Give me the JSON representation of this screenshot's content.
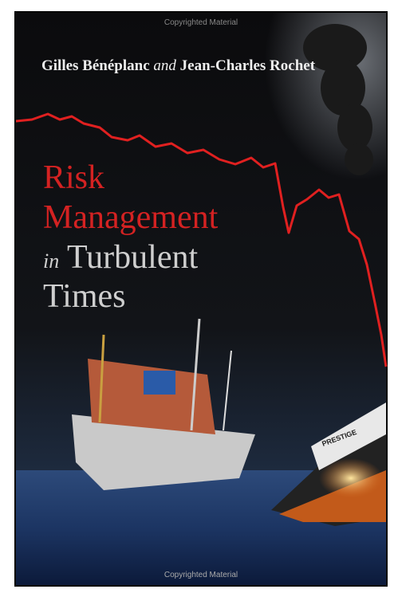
{
  "header": {
    "watermark": "Copyrighted Material"
  },
  "authors": {
    "first": "Gilles Bénéplanc",
    "conjunction": "and",
    "second": "Jean-Charles Rochet"
  },
  "title": {
    "line1": "Risk",
    "line2": "Management",
    "line3_prefix": "in",
    "line3": "Turbulent",
    "line4": "Times"
  },
  "ship_name": "PRESTIGE",
  "footer": {
    "watermark": "Copyrighted Material"
  }
}
